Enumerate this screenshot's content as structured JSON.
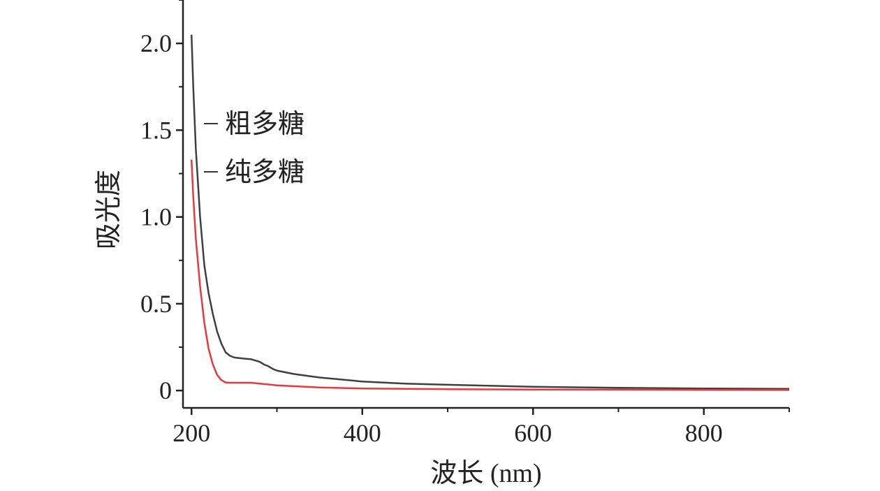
{
  "chart_data": {
    "type": "line",
    "xlabel": "波长 (nm)",
    "ylabel": "吸光度",
    "xlim": [
      190,
      900
    ],
    "ylim": [
      -0.1,
      2.25
    ],
    "xticks": [
      200,
      400,
      600,
      800
    ],
    "yticks": [
      0,
      0.5,
      1.0,
      1.5,
      2.0
    ],
    "xtick_labels": [
      "200",
      "400",
      "600",
      "800"
    ],
    "ytick_labels": [
      "0",
      "0.5",
      "1.0",
      "1.5",
      "2.0"
    ],
    "legend_position": "top-left",
    "grid": false,
    "series": [
      {
        "name": "粗多糖",
        "color": "#3f3f3f",
        "x": [
          200,
          202,
          205,
          210,
          215,
          220,
          225,
          230,
          235,
          240,
          245,
          250,
          260,
          270,
          280,
          285,
          290,
          295,
          300,
          320,
          350,
          400,
          450,
          500,
          600,
          700,
          800,
          900
        ],
        "y": [
          2.05,
          1.75,
          1.4,
          1.0,
          0.72,
          0.56,
          0.44,
          0.34,
          0.27,
          0.22,
          0.2,
          0.19,
          0.185,
          0.18,
          0.165,
          0.15,
          0.14,
          0.125,
          0.115,
          0.095,
          0.075,
          0.052,
          0.04,
          0.033,
          0.022,
          0.016,
          0.012,
          0.01
        ]
      },
      {
        "name": "纯多糖",
        "color": "#e8383d",
        "x": [
          200,
          202,
          205,
          210,
          215,
          220,
          225,
          230,
          235,
          240,
          245,
          250,
          270,
          300,
          350,
          400,
          500,
          600,
          700,
          800,
          900
        ],
        "y": [
          1.33,
          1.12,
          0.88,
          0.6,
          0.39,
          0.24,
          0.15,
          0.09,
          0.06,
          0.046,
          0.045,
          0.045,
          0.045,
          0.03,
          0.018,
          0.012,
          0.008,
          0.006,
          0.005,
          0.004,
          0.003
        ]
      }
    ]
  }
}
